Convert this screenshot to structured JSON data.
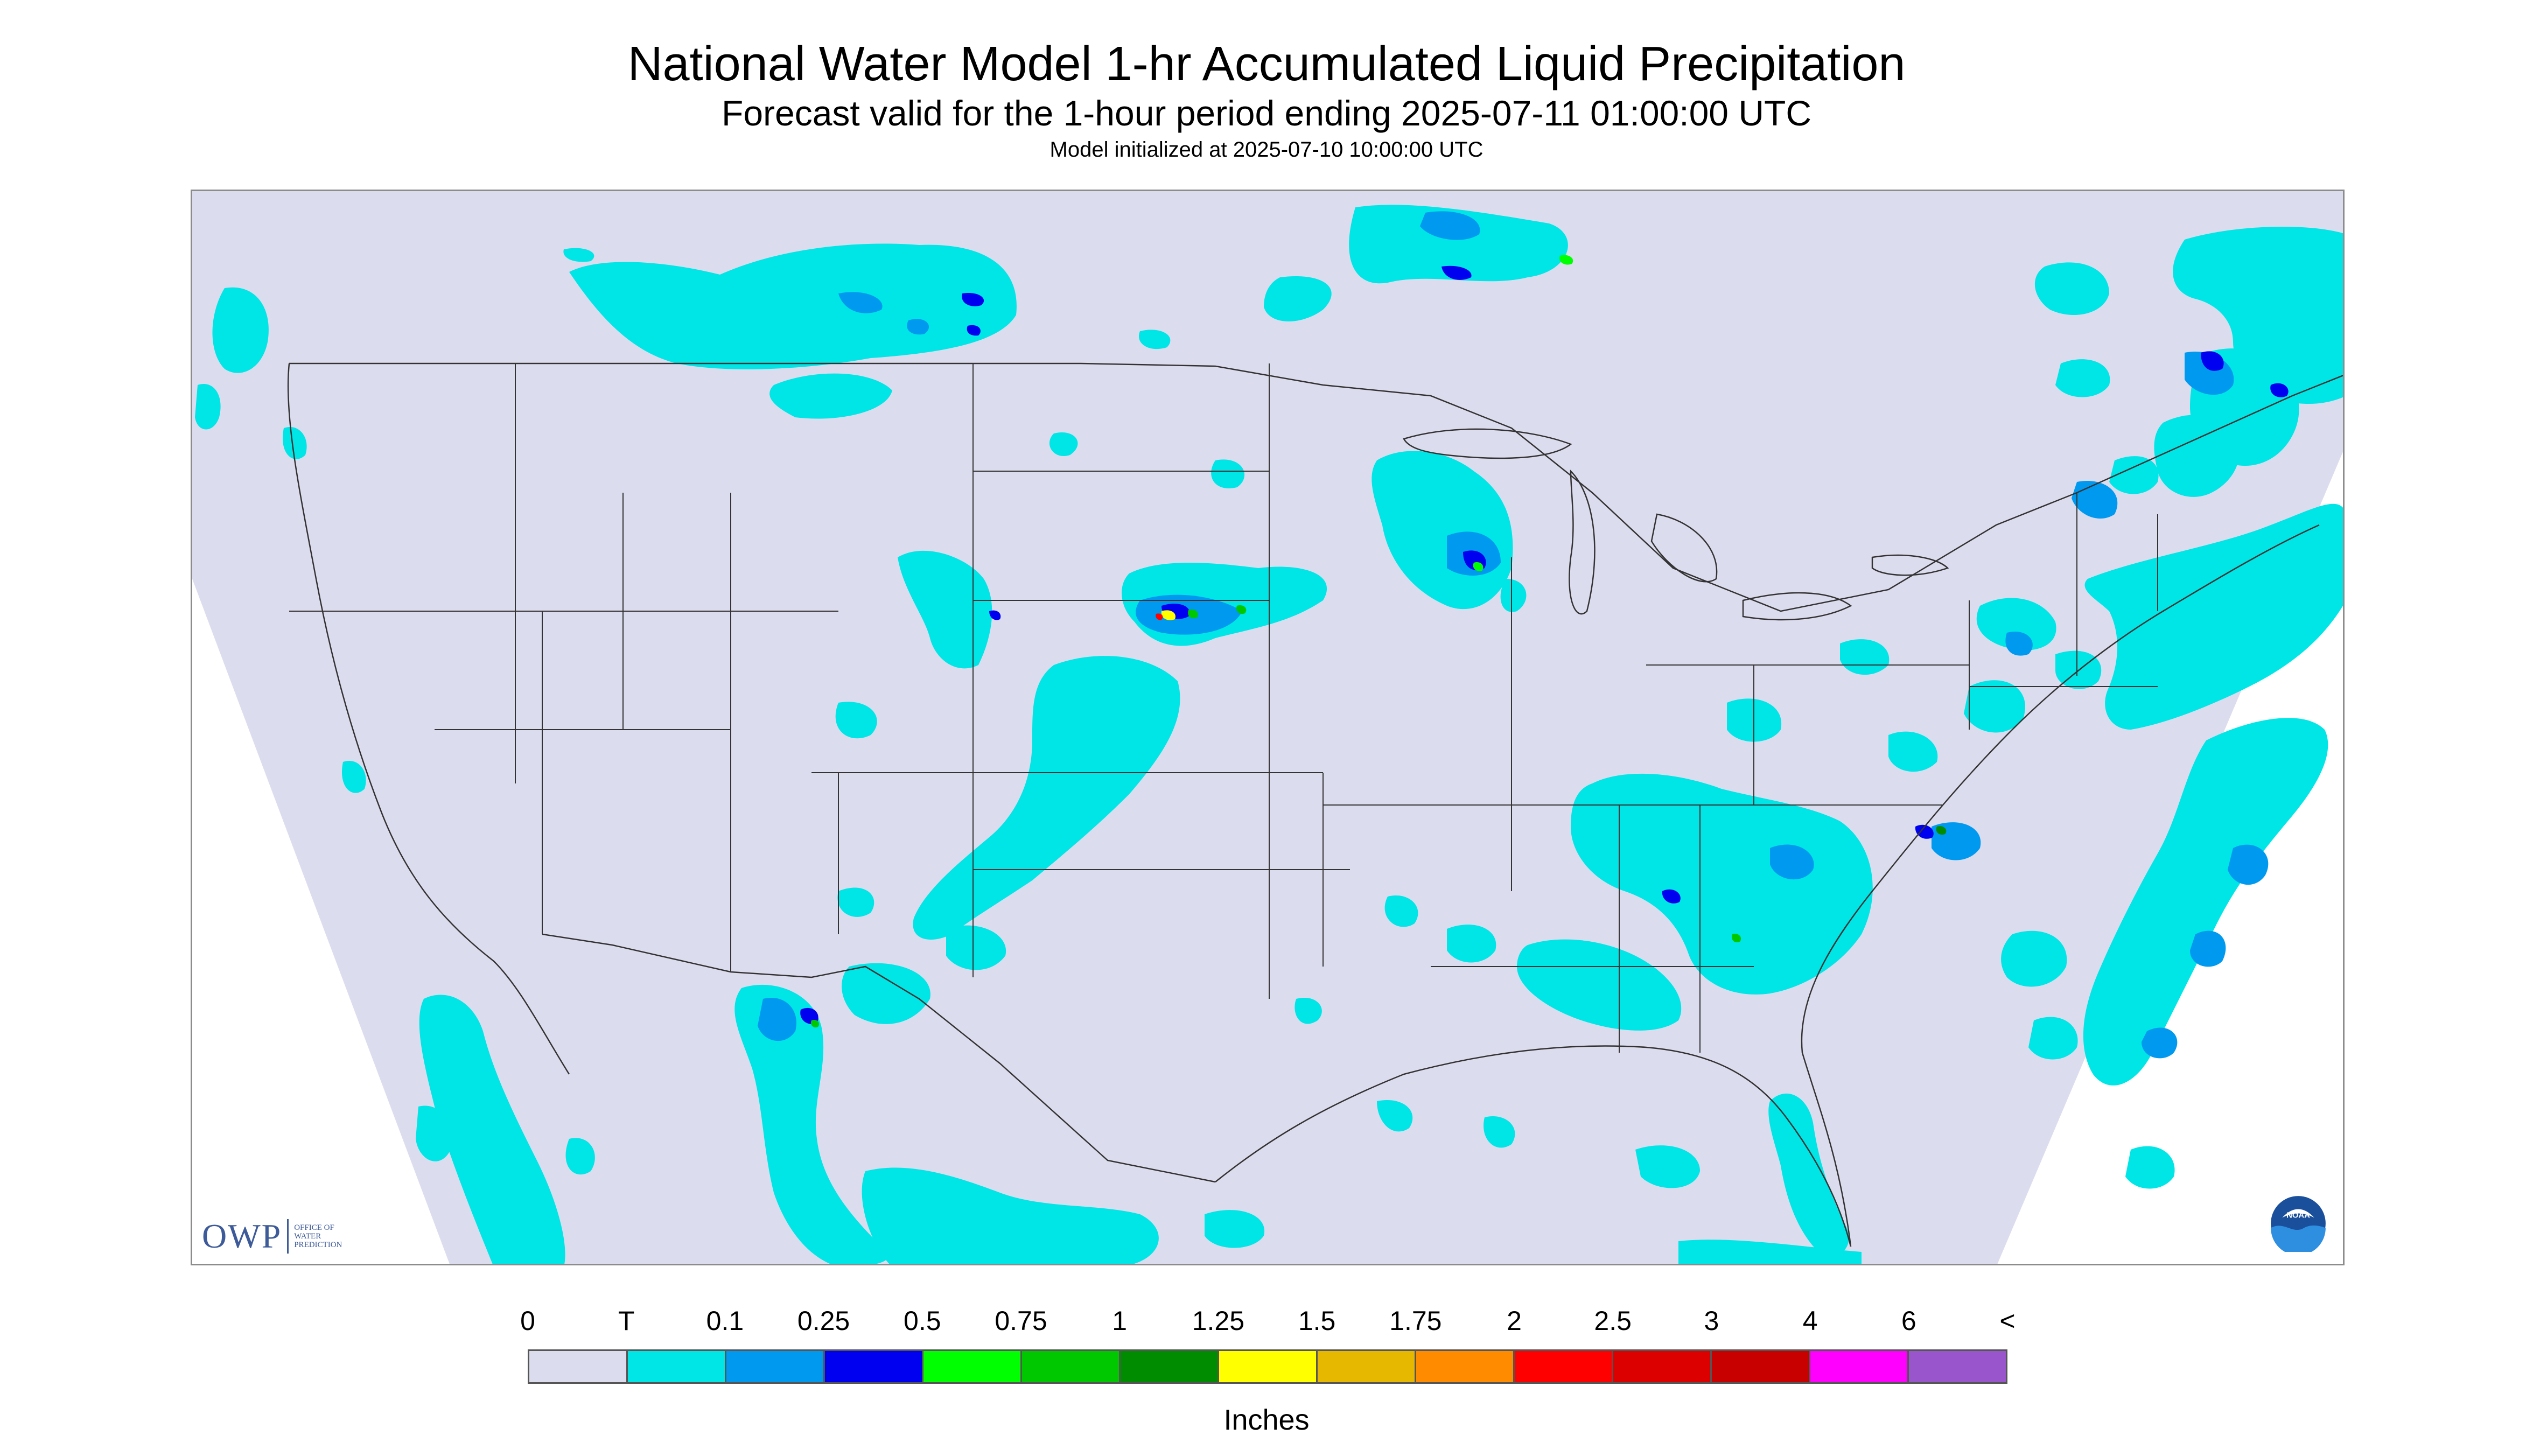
{
  "title": "National Water Model 1-hr Accumulated Liquid Precipitation",
  "subtitle": "Forecast valid for the 1-hour period ending 2025-07-11 01:00:00 UTC",
  "init_line": "Model initialized at 2025-07-10 10:00:00 UTC",
  "logo": {
    "owp_text": "OWP",
    "owp_subtext_lines": [
      "OFFICE OF",
      "WATER",
      "PREDICTION"
    ],
    "noaa_text": "NOAA"
  },
  "legend": {
    "units": "Inches",
    "tick_labels": [
      "0",
      "T",
      "0.1",
      "0.25",
      "0.5",
      "0.75",
      "1",
      "1.25",
      "1.5",
      "1.75",
      "2",
      "2.5",
      "3",
      "4",
      "6",
      "<"
    ],
    "colors": [
      "#dcdcef",
      "#00e5e5",
      "#0099f0",
      "#0000f0",
      "#00ff00",
      "#00c800",
      "#008c00",
      "#ffff00",
      "#e6b800",
      "#ff8c00",
      "#ff0000",
      "#dc0000",
      "#c80000",
      "#ff00ff",
      "#9955cc"
    ]
  },
  "colors": {
    "no_precip": "#dcdcef",
    "trace": "#00e5e5",
    "light": "#0099f0",
    "moderate": "#0000f0",
    "boundary": "#333333",
    "frame": "#8c8c8c"
  }
}
